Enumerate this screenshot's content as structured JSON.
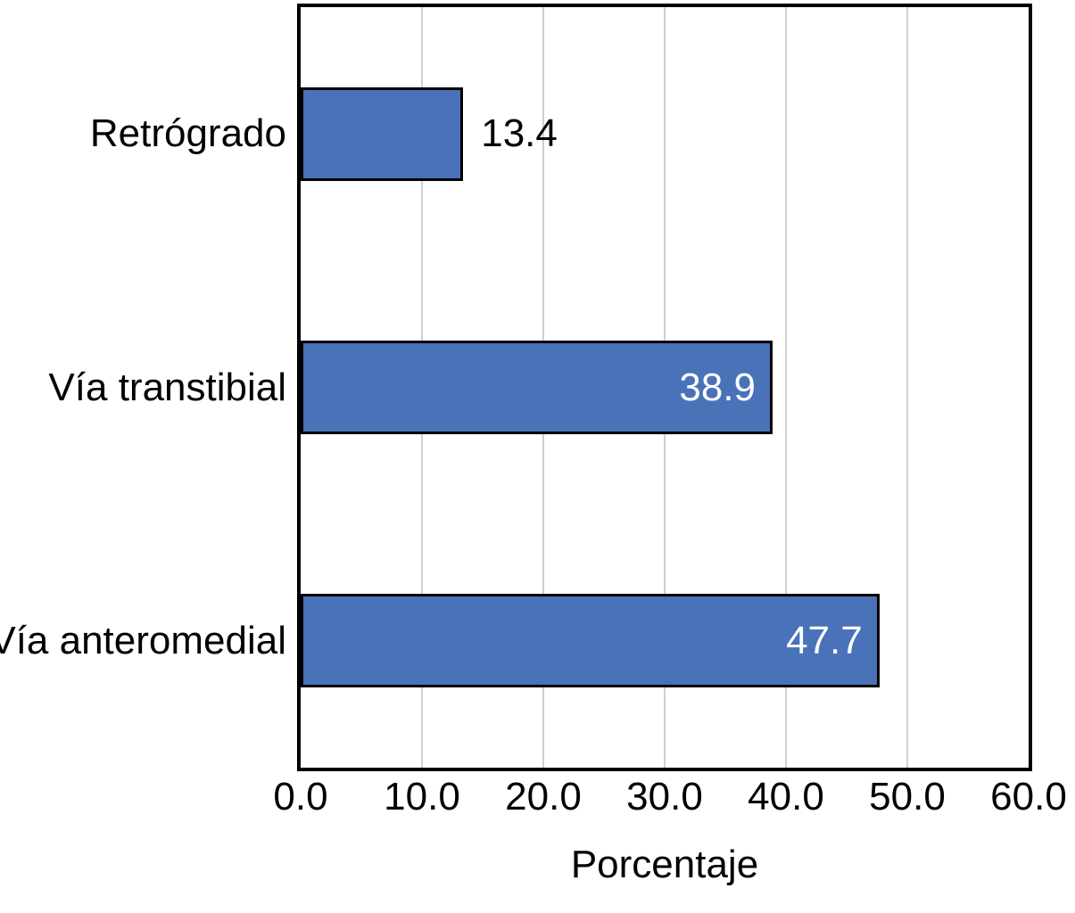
{
  "chart_data": {
    "type": "bar",
    "orientation": "horizontal",
    "title": "",
    "xlabel": "Porcentaje",
    "ylabel": "",
    "categories": [
      "Retrógrado",
      "Vía transtibial",
      "Vía anteromedial"
    ],
    "values": [
      13.4,
      38.9,
      47.7
    ],
    "value_labels": [
      "13.4",
      "38.9",
      "47.7"
    ],
    "xlim": [
      0,
      60
    ],
    "xticks": [
      0,
      10,
      20,
      30,
      40,
      50,
      60
    ],
    "xtick_labels": [
      "0.0",
      "10.0",
      "20.0",
      "30.0",
      "40.0",
      "50.0",
      "60.0"
    ],
    "grid": "vertical-only",
    "legend": "none",
    "colors": {
      "bar_fill": "#4a72b8",
      "bar_border": "#000000",
      "plot_frame": "#000000",
      "gridline": "#cfcfcf",
      "value_label_inside": "#ffffff",
      "value_label_outside": "#000000",
      "text": "#000000",
      "background": "#ffffff"
    }
  }
}
